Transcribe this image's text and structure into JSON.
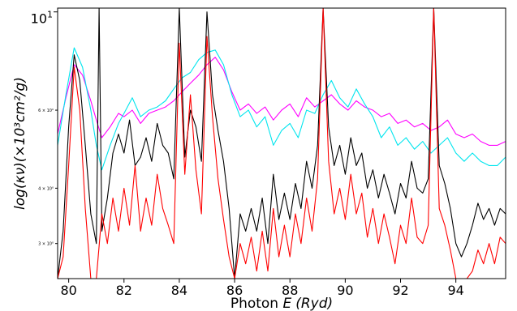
{
  "chart_data": {
    "type": "line",
    "title": "",
    "xlabel": "Photon E (Ryd)",
    "xlabel_prefix": "Photon ",
    "xlabel_var": "E",
    "xlabel_unit": "(Ryd)",
    "ylabel": "log(κν)(×10³cm²/g)",
    "xlim": [
      79.6,
      95.8
    ],
    "ylim": [
      2.5,
      10.2
    ],
    "yscale": "log",
    "grid": false,
    "legend": "none",
    "x_ticks": [
      "80",
      "82",
      "84",
      "86",
      "88",
      "90",
      "92",
      "94"
    ],
    "x_tick_values": [
      80,
      82,
      84,
      86,
      88,
      90,
      92,
      94
    ],
    "y_major_tick": {
      "value": 10,
      "base": "10",
      "exponent": "1"
    },
    "y_minor_ticks": [
      {
        "value": 6,
        "label": "6 × 10⁰"
      },
      {
        "value": 4,
        "label": "4 × 10⁰"
      },
      {
        "value": 3,
        "label": "3 × 10⁰"
      }
    ],
    "series": [
      {
        "color": "#ff00ff",
        "points": [
          [
            79.6,
            5.3
          ],
          [
            79.9,
            6.4
          ],
          [
            80.2,
            7.6
          ],
          [
            80.5,
            7.2
          ],
          [
            80.8,
            6.3
          ],
          [
            81.0,
            5.7
          ],
          [
            81.2,
            5.2
          ],
          [
            81.5,
            5.5
          ],
          [
            81.8,
            5.9
          ],
          [
            82.0,
            5.8
          ],
          [
            82.3,
            6.0
          ],
          [
            82.6,
            5.6
          ],
          [
            82.9,
            5.9
          ],
          [
            83.2,
            6.0
          ],
          [
            83.5,
            6.1
          ],
          [
            83.8,
            6.3
          ],
          [
            84.1,
            6.6
          ],
          [
            84.4,
            6.9
          ],
          [
            84.7,
            7.2
          ],
          [
            85.0,
            7.6
          ],
          [
            85.3,
            7.9
          ],
          [
            85.6,
            7.4
          ],
          [
            85.9,
            6.6
          ],
          [
            86.2,
            6.0
          ],
          [
            86.5,
            6.2
          ],
          [
            86.8,
            5.9
          ],
          [
            87.1,
            6.1
          ],
          [
            87.4,
            5.7
          ],
          [
            87.7,
            6.0
          ],
          [
            88.0,
            6.2
          ],
          [
            88.3,
            5.8
          ],
          [
            88.6,
            6.4
          ],
          [
            88.9,
            6.1
          ],
          [
            89.2,
            6.3
          ],
          [
            89.5,
            6.5
          ],
          [
            89.8,
            6.2
          ],
          [
            90.1,
            6.0
          ],
          [
            90.4,
            6.3
          ],
          [
            90.7,
            6.1
          ],
          [
            91.0,
            6.0
          ],
          [
            91.3,
            5.8
          ],
          [
            91.6,
            5.9
          ],
          [
            91.9,
            5.6
          ],
          [
            92.2,
            5.7
          ],
          [
            92.5,
            5.5
          ],
          [
            92.8,
            5.6
          ],
          [
            93.1,
            5.4
          ],
          [
            93.4,
            5.5
          ],
          [
            93.7,
            5.7
          ],
          [
            94.0,
            5.3
          ],
          [
            94.3,
            5.2
          ],
          [
            94.6,
            5.3
          ],
          [
            94.9,
            5.1
          ],
          [
            95.2,
            5.0
          ],
          [
            95.5,
            5.0
          ],
          [
            95.8,
            5.1
          ]
        ]
      },
      {
        "color": "#00e5ee",
        "points": [
          [
            79.6,
            5.0
          ],
          [
            79.9,
            6.5
          ],
          [
            80.2,
            8.3
          ],
          [
            80.5,
            7.5
          ],
          [
            80.8,
            6.0
          ],
          [
            81.0,
            5.0
          ],
          [
            81.2,
            4.4
          ],
          [
            81.5,
            5.0
          ],
          [
            81.8,
            5.6
          ],
          [
            82.0,
            5.9
          ],
          [
            82.3,
            6.4
          ],
          [
            82.6,
            5.8
          ],
          [
            82.9,
            6.0
          ],
          [
            83.2,
            6.1
          ],
          [
            83.5,
            6.3
          ],
          [
            83.8,
            6.7
          ],
          [
            84.1,
            7.1
          ],
          [
            84.4,
            7.3
          ],
          [
            84.7,
            7.8
          ],
          [
            85.0,
            8.1
          ],
          [
            85.3,
            8.2
          ],
          [
            85.6,
            7.6
          ],
          [
            85.9,
            6.5
          ],
          [
            86.2,
            5.8
          ],
          [
            86.5,
            6.0
          ],
          [
            86.8,
            5.5
          ],
          [
            87.1,
            5.8
          ],
          [
            87.4,
            5.0
          ],
          [
            87.7,
            5.4
          ],
          [
            88.0,
            5.6
          ],
          [
            88.3,
            5.2
          ],
          [
            88.6,
            6.0
          ],
          [
            88.9,
            5.9
          ],
          [
            89.2,
            6.5
          ],
          [
            89.5,
            7.0
          ],
          [
            89.8,
            6.4
          ],
          [
            90.1,
            6.1
          ],
          [
            90.4,
            6.7
          ],
          [
            90.7,
            6.2
          ],
          [
            91.0,
            5.8
          ],
          [
            91.3,
            5.2
          ],
          [
            91.6,
            5.5
          ],
          [
            91.9,
            5.0
          ],
          [
            92.2,
            5.2
          ],
          [
            92.5,
            4.9
          ],
          [
            92.8,
            5.1
          ],
          [
            93.1,
            4.8
          ],
          [
            93.4,
            5.0
          ],
          [
            93.7,
            5.2
          ],
          [
            94.0,
            4.8
          ],
          [
            94.3,
            4.6
          ],
          [
            94.6,
            4.8
          ],
          [
            94.9,
            4.6
          ],
          [
            95.2,
            4.5
          ],
          [
            95.5,
            4.5
          ],
          [
            95.8,
            4.7
          ]
        ]
      },
      {
        "color": "#000000",
        "points": [
          [
            79.6,
            2.3
          ],
          [
            79.8,
            3.2
          ],
          [
            80.0,
            5.5
          ],
          [
            80.2,
            8.0
          ],
          [
            80.4,
            7.0
          ],
          [
            80.6,
            5.0
          ],
          [
            80.8,
            3.5
          ],
          [
            81.0,
            3.0
          ],
          [
            81.1,
            10.2
          ],
          [
            81.2,
            3.2
          ],
          [
            81.4,
            3.8
          ],
          [
            81.6,
            4.8
          ],
          [
            81.8,
            5.3
          ],
          [
            82.0,
            4.8
          ],
          [
            82.2,
            5.7
          ],
          [
            82.4,
            4.5
          ],
          [
            82.6,
            4.7
          ],
          [
            82.8,
            5.2
          ],
          [
            83.0,
            4.6
          ],
          [
            83.2,
            5.6
          ],
          [
            83.4,
            5.0
          ],
          [
            83.6,
            4.8
          ],
          [
            83.8,
            4.2
          ],
          [
            84.0,
            10.2
          ],
          [
            84.2,
            4.7
          ],
          [
            84.4,
            6.0
          ],
          [
            84.6,
            5.5
          ],
          [
            84.8,
            4.6
          ],
          [
            85.0,
            10.0
          ],
          [
            85.2,
            6.5
          ],
          [
            85.4,
            5.4
          ],
          [
            85.6,
            4.6
          ],
          [
            85.8,
            3.6
          ],
          [
            86.0,
            2.5
          ],
          [
            86.2,
            3.5
          ],
          [
            86.4,
            3.2
          ],
          [
            86.6,
            3.6
          ],
          [
            86.8,
            3.2
          ],
          [
            87.0,
            3.8
          ],
          [
            87.2,
            3.0
          ],
          [
            87.4,
            4.3
          ],
          [
            87.6,
            3.4
          ],
          [
            87.8,
            3.9
          ],
          [
            88.0,
            3.4
          ],
          [
            88.2,
            4.1
          ],
          [
            88.4,
            3.6
          ],
          [
            88.6,
            4.6
          ],
          [
            88.8,
            4.0
          ],
          [
            89.0,
            5.0
          ],
          [
            89.2,
            10.2
          ],
          [
            89.4,
            5.5
          ],
          [
            89.6,
            4.5
          ],
          [
            89.8,
            5.0
          ],
          [
            90.0,
            4.3
          ],
          [
            90.2,
            5.2
          ],
          [
            90.4,
            4.5
          ],
          [
            90.6,
            4.8
          ],
          [
            90.8,
            4.0
          ],
          [
            91.0,
            4.4
          ],
          [
            91.2,
            3.8
          ],
          [
            91.4,
            4.3
          ],
          [
            91.6,
            3.9
          ],
          [
            91.8,
            3.5
          ],
          [
            92.0,
            4.1
          ],
          [
            92.2,
            3.8
          ],
          [
            92.4,
            4.6
          ],
          [
            92.6,
            4.0
          ],
          [
            92.8,
            3.9
          ],
          [
            93.0,
            4.2
          ],
          [
            93.2,
            10.2
          ],
          [
            93.4,
            4.5
          ],
          [
            93.6,
            4.1
          ],
          [
            93.8,
            3.6
          ],
          [
            94.0,
            3.0
          ],
          [
            94.2,
            2.8
          ],
          [
            94.4,
            3.0
          ],
          [
            94.6,
            3.3
          ],
          [
            94.8,
            3.7
          ],
          [
            95.0,
            3.4
          ],
          [
            95.2,
            3.6
          ],
          [
            95.4,
            3.3
          ],
          [
            95.6,
            3.6
          ],
          [
            95.8,
            3.5
          ]
        ]
      },
      {
        "color": "#ff0000",
        "points": [
          [
            79.6,
            2.4
          ],
          [
            79.8,
            2.8
          ],
          [
            80.0,
            4.5
          ],
          [
            80.2,
            7.5
          ],
          [
            80.4,
            6.0
          ],
          [
            80.6,
            3.6
          ],
          [
            80.8,
            2.5
          ],
          [
            81.0,
            2.1
          ],
          [
            81.2,
            3.5
          ],
          [
            81.4,
            3.0
          ],
          [
            81.6,
            3.8
          ],
          [
            81.8,
            3.2
          ],
          [
            82.0,
            4.0
          ],
          [
            82.2,
            3.3
          ],
          [
            82.4,
            4.5
          ],
          [
            82.6,
            3.2
          ],
          [
            82.8,
            3.8
          ],
          [
            83.0,
            3.3
          ],
          [
            83.2,
            4.3
          ],
          [
            83.4,
            3.6
          ],
          [
            83.6,
            3.3
          ],
          [
            83.8,
            3.0
          ],
          [
            84.0,
            8.5
          ],
          [
            84.2,
            4.3
          ],
          [
            84.4,
            6.5
          ],
          [
            84.6,
            4.4
          ],
          [
            84.8,
            3.5
          ],
          [
            85.0,
            8.8
          ],
          [
            85.2,
            5.8
          ],
          [
            85.4,
            4.2
          ],
          [
            85.6,
            3.4
          ],
          [
            85.8,
            2.8
          ],
          [
            86.0,
            2.5
          ],
          [
            86.2,
            3.0
          ],
          [
            86.4,
            2.7
          ],
          [
            86.6,
            3.1
          ],
          [
            86.8,
            2.6
          ],
          [
            87.0,
            3.2
          ],
          [
            87.2,
            2.6
          ],
          [
            87.4,
            3.6
          ],
          [
            87.6,
            2.8
          ],
          [
            87.8,
            3.3
          ],
          [
            88.0,
            2.8
          ],
          [
            88.2,
            3.5
          ],
          [
            88.4,
            3.0
          ],
          [
            88.6,
            3.8
          ],
          [
            88.8,
            3.2
          ],
          [
            89.0,
            4.2
          ],
          [
            89.2,
            10.2
          ],
          [
            89.4,
            4.6
          ],
          [
            89.6,
            3.5
          ],
          [
            89.8,
            4.0
          ],
          [
            90.0,
            3.4
          ],
          [
            90.2,
            4.3
          ],
          [
            90.4,
            3.5
          ],
          [
            90.6,
            3.9
          ],
          [
            90.8,
            3.1
          ],
          [
            91.0,
            3.6
          ],
          [
            91.2,
            3.0
          ],
          [
            91.4,
            3.5
          ],
          [
            91.6,
            3.1
          ],
          [
            91.8,
            2.7
          ],
          [
            92.0,
            3.3
          ],
          [
            92.2,
            3.0
          ],
          [
            92.4,
            3.8
          ],
          [
            92.6,
            3.1
          ],
          [
            92.8,
            3.0
          ],
          [
            93.0,
            3.3
          ],
          [
            93.2,
            10.2
          ],
          [
            93.4,
            3.6
          ],
          [
            93.6,
            3.3
          ],
          [
            93.8,
            2.9
          ],
          [
            94.0,
            2.5
          ],
          [
            94.2,
            2.2
          ],
          [
            94.4,
            2.3
          ],
          [
            94.6,
            2.6
          ],
          [
            94.8,
            2.9
          ],
          [
            95.0,
            2.7
          ],
          [
            95.2,
            3.0
          ],
          [
            95.4,
            2.7
          ],
          [
            95.6,
            3.1
          ],
          [
            95.8,
            3.0
          ]
        ]
      }
    ]
  }
}
